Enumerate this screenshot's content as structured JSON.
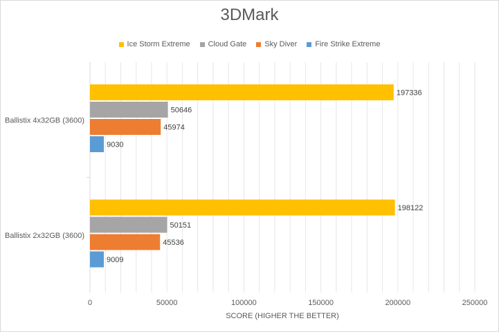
{
  "chart_data": {
    "type": "bar",
    "orientation": "horizontal",
    "title": "3DMark",
    "xlabel": "SCORE (HIGHER THE BETTER)",
    "ylabel": "",
    "xlim": [
      0,
      250000
    ],
    "xticks": [
      0,
      50000,
      100000,
      150000,
      200000,
      250000
    ],
    "xtick_labels": [
      "0",
      "50000",
      "100000",
      "150000",
      "200000",
      "250000"
    ],
    "grid": true,
    "legend_position": "top",
    "categories": [
      "Ballistix 4x32GB (3600)",
      "Ballistix 2x32GB (3600)"
    ],
    "series": [
      {
        "name": "Ice Storm Extreme",
        "color": "#FFC000",
        "values": [
          197336,
          198122
        ]
      },
      {
        "name": "Cloud Gate",
        "color": "#A5A5A5",
        "values": [
          50646,
          50151
        ]
      },
      {
        "name": "Sky Diver",
        "color": "#ED7D31",
        "values": [
          45974,
          45536
        ]
      },
      {
        "name": "Fire Strike Extreme",
        "color": "#5B9BD5",
        "values": [
          9030,
          9009
        ]
      }
    ]
  }
}
